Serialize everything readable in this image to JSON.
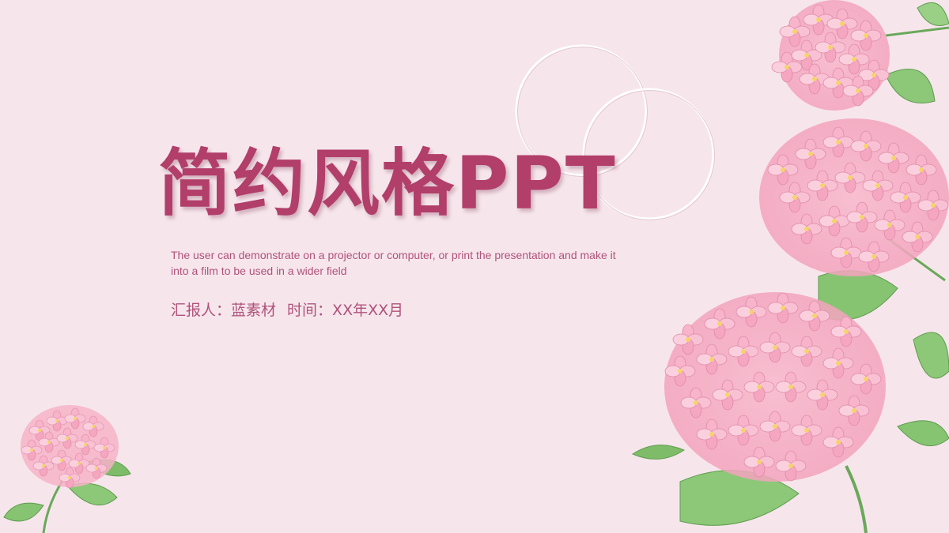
{
  "slide": {
    "title": "简约风格PPT",
    "description": "The user can demonstrate on a projector or computer, or print the presentation and make it into a film to be used in a wider field",
    "reporter_label": "汇报人：",
    "reporter_name": "蓝素材",
    "time_label": "时间：",
    "time_value": "XX年XX月"
  },
  "colors": {
    "background": "#f6e6ec",
    "title": "#b23e6a",
    "text": "#b0527a",
    "petal": "#f4a9c2",
    "leaf": "#7fbf6a"
  },
  "icons": [
    "decorative-rings-icon",
    "hydrangea-right-icon",
    "hydrangea-left-icon"
  ]
}
